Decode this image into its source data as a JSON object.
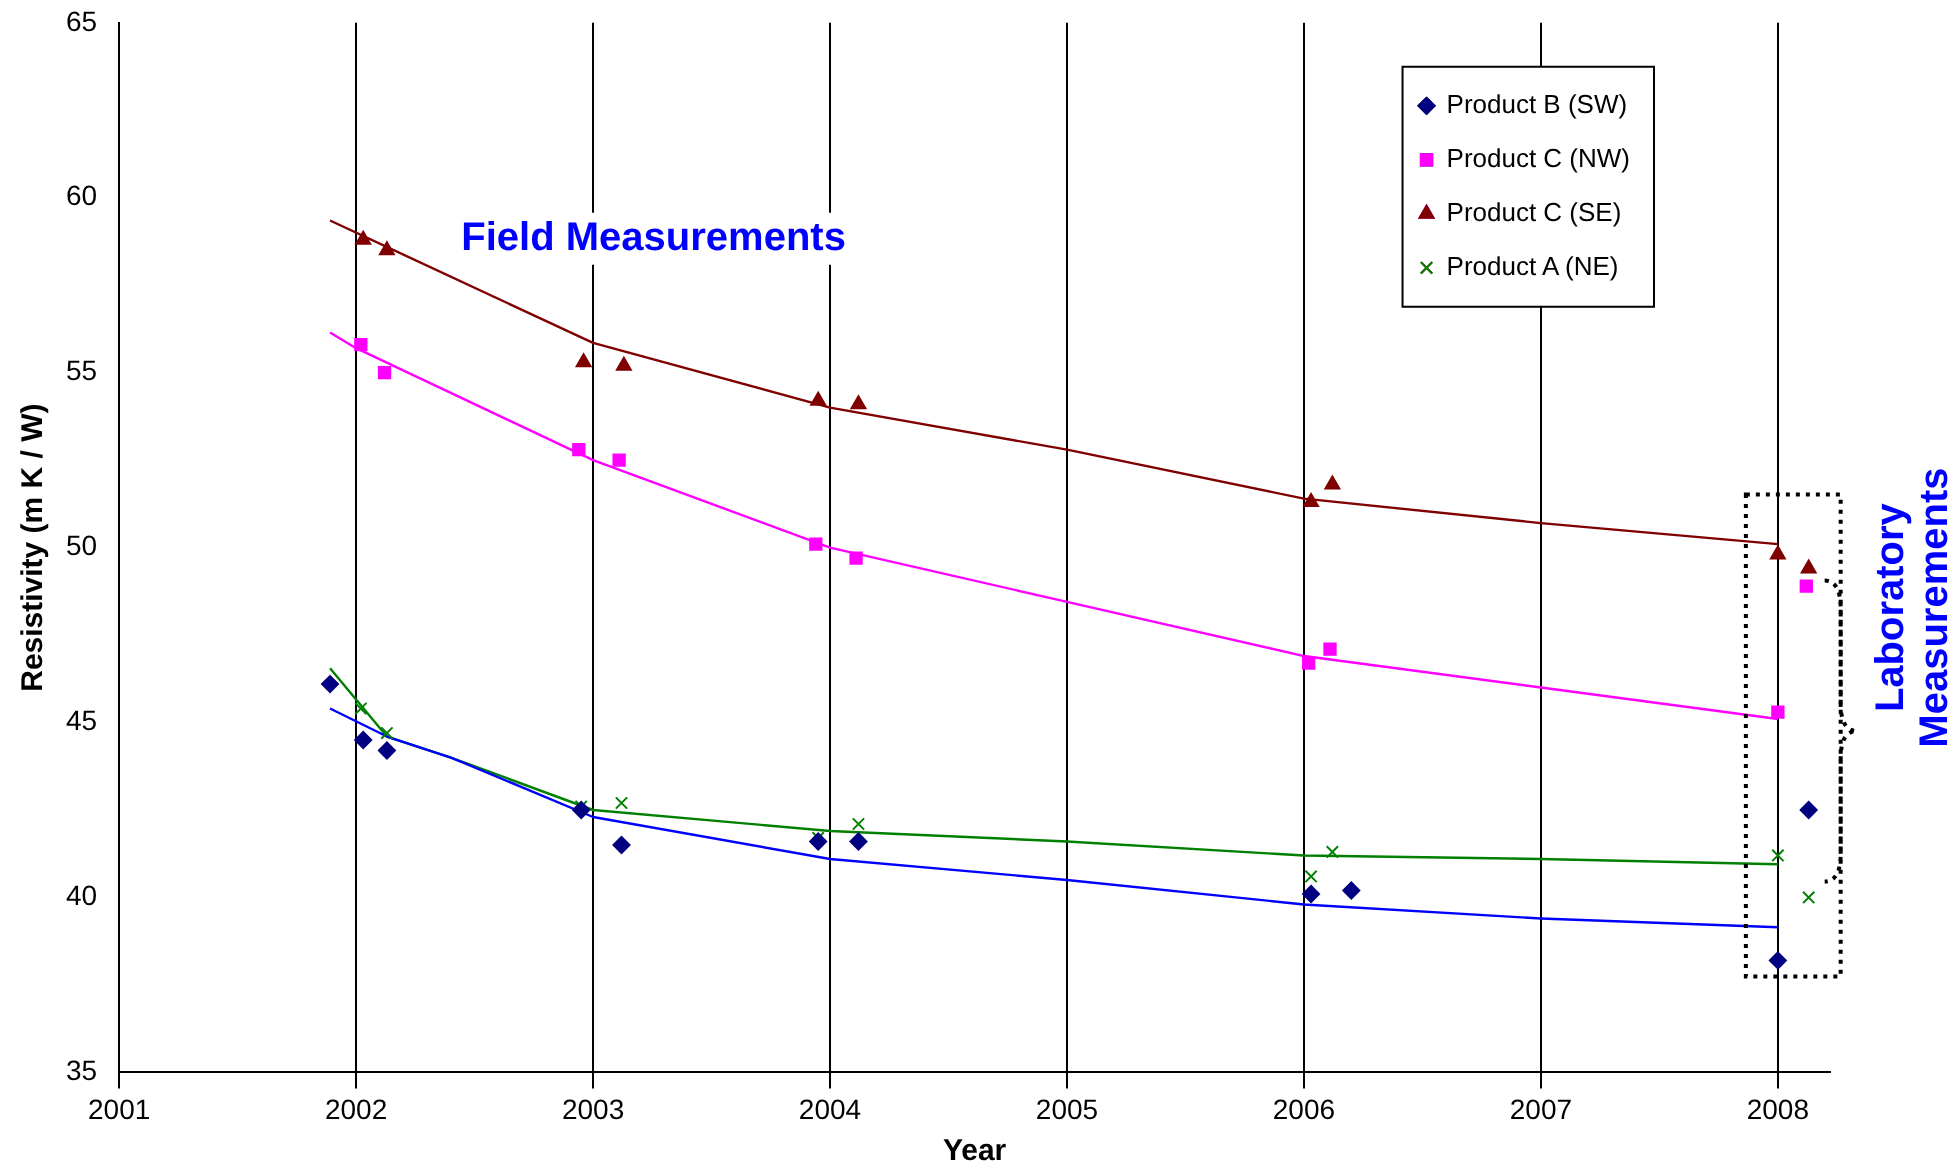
{
  "chart_data": {
    "type": "scatter",
    "xlabel": "Year",
    "ylabel": "Resistivity (m K / W)",
    "annotations": [
      "Field Measurements",
      "Laboratory Measurements"
    ],
    "xlim": [
      2001,
      2008.22
    ],
    "xticks": [
      2001,
      2002,
      2003,
      2004,
      2005,
      2006,
      2007,
      2008
    ],
    "ylim": [
      35,
      65
    ],
    "yticks": [
      35,
      40,
      45,
      50,
      55,
      60,
      65
    ],
    "grid": "x",
    "legend": "top right",
    "series": [
      {
        "name": "Product B (SW)",
        "marker": "diamond",
        "color": "#000080",
        "x": [
          2001.89,
          2002.03,
          2002.13,
          2002.95,
          2003.12,
          2003.95,
          2004.12,
          2006.03,
          2006.2,
          2008.0,
          2008.13
        ],
        "values": [
          46.1,
          44.5,
          44.2,
          42.5,
          41.5,
          41.6,
          41.6,
          40.1,
          40.2,
          38.2,
          42.5
        ]
      },
      {
        "name": "Product C (NW)",
        "marker": "square",
        "color": "#ff00ff",
        "x": [
          2002.02,
          2002.12,
          2002.94,
          2003.11,
          2003.94,
          2004.11,
          2006.02,
          2006.11,
          2008.0,
          2008.12
        ],
        "values": [
          55.8,
          55.0,
          52.8,
          52.5,
          50.1,
          49.7,
          46.7,
          47.1,
          45.3,
          48.9
        ]
      },
      {
        "name": "Product C (SE)",
        "marker": "triangle",
        "color": "#800000",
        "x": [
          2002.03,
          2002.13,
          2002.96,
          2003.13,
          2003.95,
          2004.12,
          2006.03,
          2006.12,
          2008.0,
          2008.13
        ],
        "values": [
          58.8,
          58.5,
          55.3,
          55.2,
          54.2,
          54.1,
          51.3,
          51.8,
          49.8,
          49.4
        ]
      },
      {
        "name": "Product A (NE)",
        "marker": "cross",
        "color": "#008000",
        "x": [
          2002.02,
          2002.13,
          2002.95,
          2003.12,
          2003.95,
          2004.12,
          2006.03,
          2006.12,
          2008.0,
          2008.13
        ],
        "values": [
          45.4,
          44.7,
          42.6,
          42.7,
          41.7,
          42.1,
          40.6,
          41.3,
          41.2,
          40.0
        ]
      },
      {
        "type": "line",
        "color": "#0000ff",
        "marker": "none",
        "x": [
          2001.89,
          2002.13,
          2002.4,
          2003,
          2004,
          2005,
          2006,
          2007,
          2008
        ],
        "values": [
          45.4,
          44.6,
          44.0,
          42.3,
          41.1,
          40.5,
          39.8,
          39.4,
          39.15
        ]
      },
      {
        "type": "line",
        "color": "#ff00ff",
        "marker": "none",
        "x": [
          2001.89,
          2002,
          2003,
          2004,
          2005,
          2006,
          2007,
          2008
        ],
        "values": [
          56.15,
          55.7,
          52.5,
          50.0,
          48.45,
          46.9,
          46.0,
          45.1
        ]
      },
      {
        "type": "line",
        "color": "#800000",
        "marker": "none",
        "x": [
          2001.89,
          2003,
          2004,
          2005,
          2006,
          2007,
          2008
        ],
        "values": [
          59.35,
          55.85,
          54.0,
          52.8,
          51.4,
          50.7,
          50.1
        ]
      },
      {
        "type": "line",
        "color": "#008000",
        "marker": "none",
        "x": [
          2001.89,
          2002.13,
          2002.4,
          2003,
          2004,
          2005,
          2006,
          2007,
          2008
        ],
        "values": [
          46.55,
          44.6,
          44.0,
          42.5,
          41.9,
          41.6,
          41.2,
          41.1,
          40.95
        ]
      }
    ]
  }
}
